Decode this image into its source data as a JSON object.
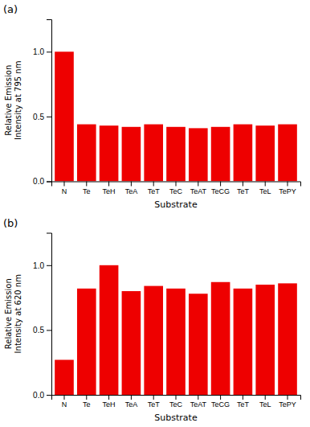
{
  "chart_data": [
    {
      "type": "bar",
      "annotations": [
        "(a)"
      ],
      "categories": [
        "N",
        "Te",
        "TeH",
        "TeA",
        "TeT",
        "TeC",
        "TeAT",
        "TeCG",
        "TeT",
        "TeL",
        "TePY"
      ],
      "values": [
        1.0,
        0.44,
        0.43,
        0.42,
        0.44,
        0.42,
        0.41,
        0.42,
        0.44,
        0.43,
        0.44
      ],
      "color": "#EE0000",
      "xlabel": "Substrate",
      "ylabel": "Relative Emission\nIntensity at 795 nm",
      "ylim": [
        0.0,
        1.25
      ],
      "yticks": [
        {
          "value": 0.0,
          "label": "0.0"
        },
        0.5,
        {
          "value": 1.0,
          "label": "1.0"
        }
      ]
    },
    {
      "type": "bar",
      "annotations": [
        "(b)"
      ],
      "categories": [
        "N",
        "Te",
        "TeH",
        "TeA",
        "TeT",
        "TeC",
        "TeAT",
        "TeCG",
        "TeT",
        "TeL",
        "TePY"
      ],
      "values": [
        0.27,
        0.82,
        1.0,
        0.8,
        0.84,
        0.82,
        0.78,
        0.87,
        0.82,
        0.85,
        0.86
      ],
      "color": "#EE0000",
      "xlabel": "Substrate",
      "ylabel": "Relative Emission\nIntensity at 620 nm",
      "ylim": [
        0.0,
        1.25
      ],
      "yticks": [
        {
          "value": 0.0,
          "label": "0.0"
        },
        0.5,
        {
          "value": 1.0,
          "label": "1.0"
        }
      ]
    }
  ]
}
